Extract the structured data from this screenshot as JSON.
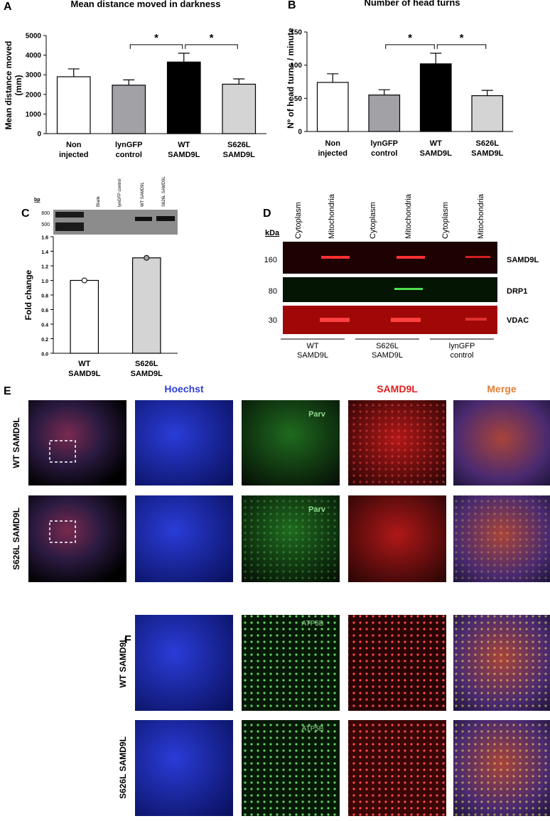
{
  "chart_data": [
    {
      "type": "bar",
      "panel": "A",
      "title": "Mean distance moved in darkness",
      "y_label": "Mean distance moved\n(mm)",
      "categories": [
        "Non\ninjected",
        "lynGFP\ncontrol",
        "WT\nSAMD9L",
        "S626L\nSAMD9L"
      ],
      "values": [
        2900,
        2470,
        3650,
        2520
      ],
      "errors": [
        400,
        270,
        450,
        270
      ],
      "colors": [
        "#ffffff",
        "#a2a2a6",
        "#000000",
        "#d4d4d4"
      ],
      "ylim": [
        0,
        5000
      ],
      "yticks": [
        0,
        1000,
        2000,
        3000,
        4000,
        5000
      ],
      "annotations": [
        "*",
        "*"
      ]
    },
    {
      "type": "bar",
      "panel": "B",
      "title": "Number of head turns",
      "y_label": "Nº of head turns / minute",
      "categories": [
        "Non\ninjected",
        "lynGFP\ncontrol",
        "WT\nSAMD9L",
        "S626L\nSAMD9L"
      ],
      "values": [
        74,
        55,
        102,
        54
      ],
      "errors": [
        13,
        8,
        16,
        8
      ],
      "colors": [
        "#ffffff",
        "#a2a2a6",
        "#000000",
        "#d4d4d4"
      ],
      "ylim": [
        0,
        150
      ],
      "yticks": [
        0,
        50,
        100,
        150
      ],
      "annotations": [
        "*",
        "*"
      ]
    },
    {
      "type": "bar",
      "panel": "C",
      "y_label": "Fold change",
      "categories": [
        "WT\nSAMD9L",
        "S626L\nSAMD9L"
      ],
      "values": [
        1.0,
        1.31
      ],
      "colors": [
        "#ffffff",
        "#d4d4d4"
      ],
      "point_colors": [
        "#ffffff",
        "#a0a0a0"
      ],
      "ylim": [
        0,
        1.6
      ],
      "yticks": [
        {
          "value": 0,
          "label": "0.0"
        },
        {
          "value": 0.2,
          "label": "0.2"
        },
        {
          "value": 0.4,
          "label": "0.4"
        },
        {
          "value": 0.6,
          "label": "0.6"
        },
        {
          "value": 0.8,
          "label": "0.8"
        },
        {
          "value": 1.0,
          "label": "1.0"
        },
        {
          "value": 1.2,
          "label": "1.2"
        },
        {
          "value": 1.4,
          "label": "1.4"
        },
        {
          "value": 1.6,
          "label": "1.6"
        }
      ]
    }
  ],
  "gel": {
    "unit": "bp",
    "markers": [
      "600",
      "500"
    ],
    "lanes": [
      "Blank",
      "lynGFP control",
      "WT SAMD9L",
      "S626L SAMD9L"
    ]
  },
  "blot": {
    "panel": "D",
    "unit": "kDa",
    "columns": [
      "Cytoplasm",
      "Mitochondria",
      "Cytoplasm",
      "Mitochondria",
      "Cytoplasm",
      "Mitochondria"
    ],
    "rows": [
      {
        "marker": "160",
        "protein": "SAMD9L"
      },
      {
        "marker": "80",
        "protein": "DRP1"
      },
      {
        "marker": "30",
        "protein": "VDAC"
      }
    ],
    "groups": [
      "WT\nSAMD9L",
      "S626L\nSAMD9L",
      "lynGFP\ncontrol"
    ]
  },
  "imaging_e": {
    "panel": "E",
    "channels": [
      "Hoechst",
      "SAMD9L",
      "Merge"
    ],
    "rows": [
      "WT SAMD9L",
      "S626L SAMD9L"
    ],
    "inset_label": "Parv"
  },
  "imaging_f": {
    "panel": "F",
    "rows": [
      "WT SAMD9L",
      "S626L SAMD9L"
    ],
    "inset_label": "ATP5B"
  }
}
